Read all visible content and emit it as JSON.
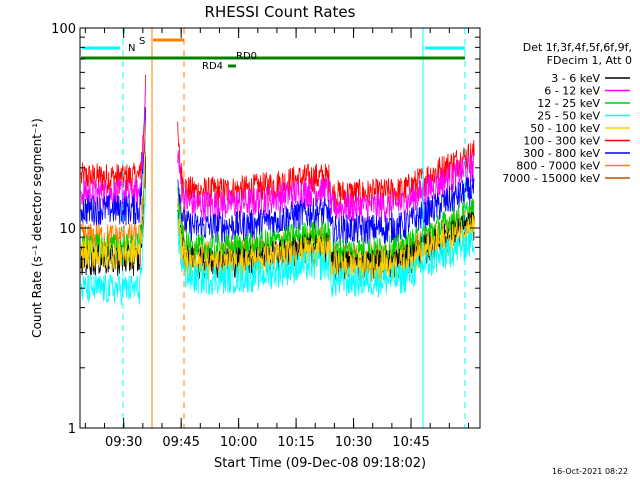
{
  "chart_data": {
    "type": "line",
    "title": "RHESSI Count Rates",
    "xlabel": "Start Time (09-Dec-08 09:18:02)",
    "ylabel": "Count Rate (s⁻¹ detector segment⁻¹)",
    "y_scale": "log",
    "ylim": [
      1,
      100
    ],
    "y_ticks": [
      {
        "v": 1,
        "label": "1"
      },
      {
        "v": 10,
        "label": "10"
      },
      {
        "v": 100,
        "label": "100"
      }
    ],
    "xlim": [
      9.31,
      11.05
    ],
    "x_ticks": [
      {
        "v": 9.5,
        "label": "09:30"
      },
      {
        "v": 9.75,
        "label": "09:45"
      },
      {
        "v": 10.0,
        "label": "10:00"
      },
      {
        "v": 10.25,
        "label": "10:15"
      },
      {
        "v": 10.5,
        "label": "10:30"
      },
      {
        "v": 10.75,
        "label": "10:45"
      }
    ],
    "legend": {
      "position": "right",
      "header": [
        "Det 1f,3f,4f,5f,6f,9f,",
        "FDecim 1, Att 0"
      ],
      "series_names": [
        "3 - 6 keV",
        "6 - 12 keV",
        "12 - 25 keV",
        "25 - 50 keV",
        "50 - 100 keV",
        "100 - 300 keV",
        "300 - 800 keV",
        "800 - 7000 keV",
        "7000 - 15000 keV"
      ],
      "colors": [
        "#000000",
        "#ff00ff",
        "#00d000",
        "#00ffff",
        "#ffd000",
        "#ff0000",
        "#0000ff",
        "#ff8000",
        "#c05000"
      ]
    },
    "series_profiles": [
      {
        "name": "100 - 300 keV",
        "color": "#ff0000",
        "base": 18.0,
        "mid": 18.0
      },
      {
        "name": "6 - 12 keV",
        "color": "#ff00ff",
        "base": 15.0,
        "mid": 15.5
      },
      {
        "name": "300 - 800 keV",
        "color": "#0000ff",
        "base": 12.5,
        "mid": 12.0
      },
      {
        "name": "800 - 7000 keV",
        "color": "#ff8000",
        "base": 9.0,
        "mid": 8.6
      },
      {
        "name": "12 - 25 keV",
        "color": "#00d000",
        "base": 8.0,
        "mid": 9.3
      },
      {
        "name": "3 - 6 keV",
        "color": "#000000",
        "base": 7.0,
        "mid": 8.0
      },
      {
        "name": "50 - 100 keV",
        "color": "#ffd000",
        "base": 7.5,
        "mid": 7.8
      },
      {
        "name": "25 - 50 keV",
        "color": "#00ffff",
        "base": 5.0,
        "mid": 6.6
      }
    ],
    "gap": [
      9.595,
      9.735
    ],
    "segments": [
      9.415,
      10.925
    ],
    "flags": [
      {
        "label": "N",
        "color": "#00d0ff"
      },
      {
        "label": "S",
        "color": "#ff8000"
      },
      {
        "label": "RD0",
        "color": "#008000"
      },
      {
        "label": "RD4",
        "color": "#008000"
      }
    ],
    "timestamp": "16-Oct-2021 08:22"
  }
}
